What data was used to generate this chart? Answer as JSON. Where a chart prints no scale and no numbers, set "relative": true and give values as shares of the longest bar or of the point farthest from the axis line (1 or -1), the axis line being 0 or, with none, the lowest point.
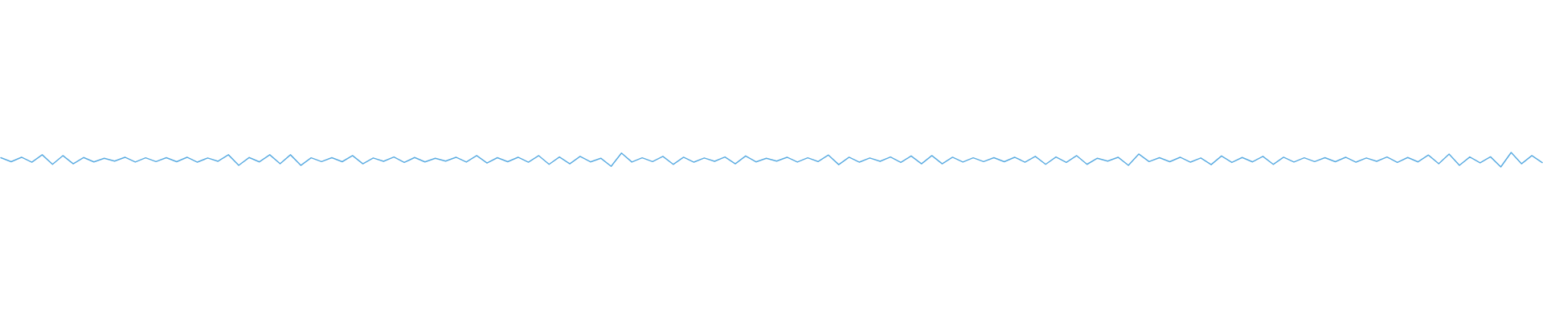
{
  "chart_data": {
    "type": "line",
    "relative": true,
    "color": "#5dade2",
    "categories": [
      null,
      null,
      null,
      null,
      null,
      null,
      null,
      null,
      null,
      null,
      null,
      null,
      null,
      null,
      null,
      null,
      null,
      null,
      null,
      null,
      null,
      null,
      null,
      null,
      null,
      null,
      null,
      null,
      null,
      null,
      null,
      null,
      null,
      null,
      null,
      null,
      null,
      null,
      null,
      null,
      null,
      null,
      null,
      null,
      null,
      null,
      null,
      null,
      null,
      null,
      null,
      null,
      null,
      null,
      null,
      null,
      null,
      null,
      null,
      null,
      null,
      null,
      null,
      null,
      null,
      null,
      null,
      null,
      null,
      null,
      null,
      null,
      null,
      null,
      null,
      null,
      null,
      null,
      null,
      null,
      null,
      null,
      null,
      null,
      null,
      null,
      null,
      null,
      null,
      null,
      null,
      null,
      null,
      null,
      null,
      null,
      null,
      null,
      null,
      null,
      null,
      null,
      null,
      null,
      null,
      null,
      null,
      null,
      null,
      null,
      null,
      null,
      null,
      null,
      null,
      null,
      null,
      null,
      null,
      null,
      null,
      null,
      null,
      null,
      null,
      null,
      null,
      null,
      null,
      null,
      null,
      null,
      null,
      null,
      null,
      null,
      null,
      null,
      null,
      null,
      null,
      null,
      null,
      null,
      null,
      null,
      null,
      null,
      null,
      null
    ],
    "values": [
      0.64,
      0.36,
      0.67,
      0.33,
      0.84,
      0.18,
      0.78,
      0.22,
      0.65,
      0.35,
      0.6,
      0.4,
      0.67,
      0.34,
      0.63,
      0.37,
      0.64,
      0.36,
      0.67,
      0.33,
      0.62,
      0.39,
      0.84,
      0.11,
      0.65,
      0.35,
      0.84,
      0.22,
      0.84,
      0.11,
      0.63,
      0.37,
      0.64,
      0.36,
      0.78,
      0.22,
      0.62,
      0.39,
      0.69,
      0.31,
      0.65,
      0.35,
      0.6,
      0.4,
      0.67,
      0.34,
      0.78,
      0.27,
      0.64,
      0.36,
      0.67,
      0.33,
      0.78,
      0.18,
      0.69,
      0.22,
      0.73,
      0.35,
      0.6,
      0.04,
      0.96,
      0.34,
      0.63,
      0.37,
      0.73,
      0.18,
      0.67,
      0.33,
      0.62,
      0.39,
      0.69,
      0.22,
      0.76,
      0.35,
      0.6,
      0.4,
      0.67,
      0.34,
      0.63,
      0.37,
      0.82,
      0.16,
      0.67,
      0.33,
      0.62,
      0.39,
      0.69,
      0.31,
      0.76,
      0.22,
      0.78,
      0.22,
      0.67,
      0.34,
      0.63,
      0.37,
      0.64,
      0.36,
      0.67,
      0.33,
      0.73,
      0.18,
      0.69,
      0.31,
      0.78,
      0.18,
      0.6,
      0.4,
      0.67,
      0.11,
      0.89,
      0.37,
      0.64,
      0.36,
      0.67,
      0.33,
      0.62,
      0.16,
      0.76,
      0.31,
      0.65,
      0.35,
      0.73,
      0.18,
      0.67,
      0.34,
      0.63,
      0.37,
      0.64,
      0.36,
      0.67,
      0.33,
      0.62,
      0.39,
      0.69,
      0.31,
      0.65,
      0.35,
      0.82,
      0.22,
      0.89,
      0.11,
      0.69,
      0.28,
      0.7,
      0.0,
      1.0,
      0.22,
      0.78,
      0.3
    ]
  }
}
